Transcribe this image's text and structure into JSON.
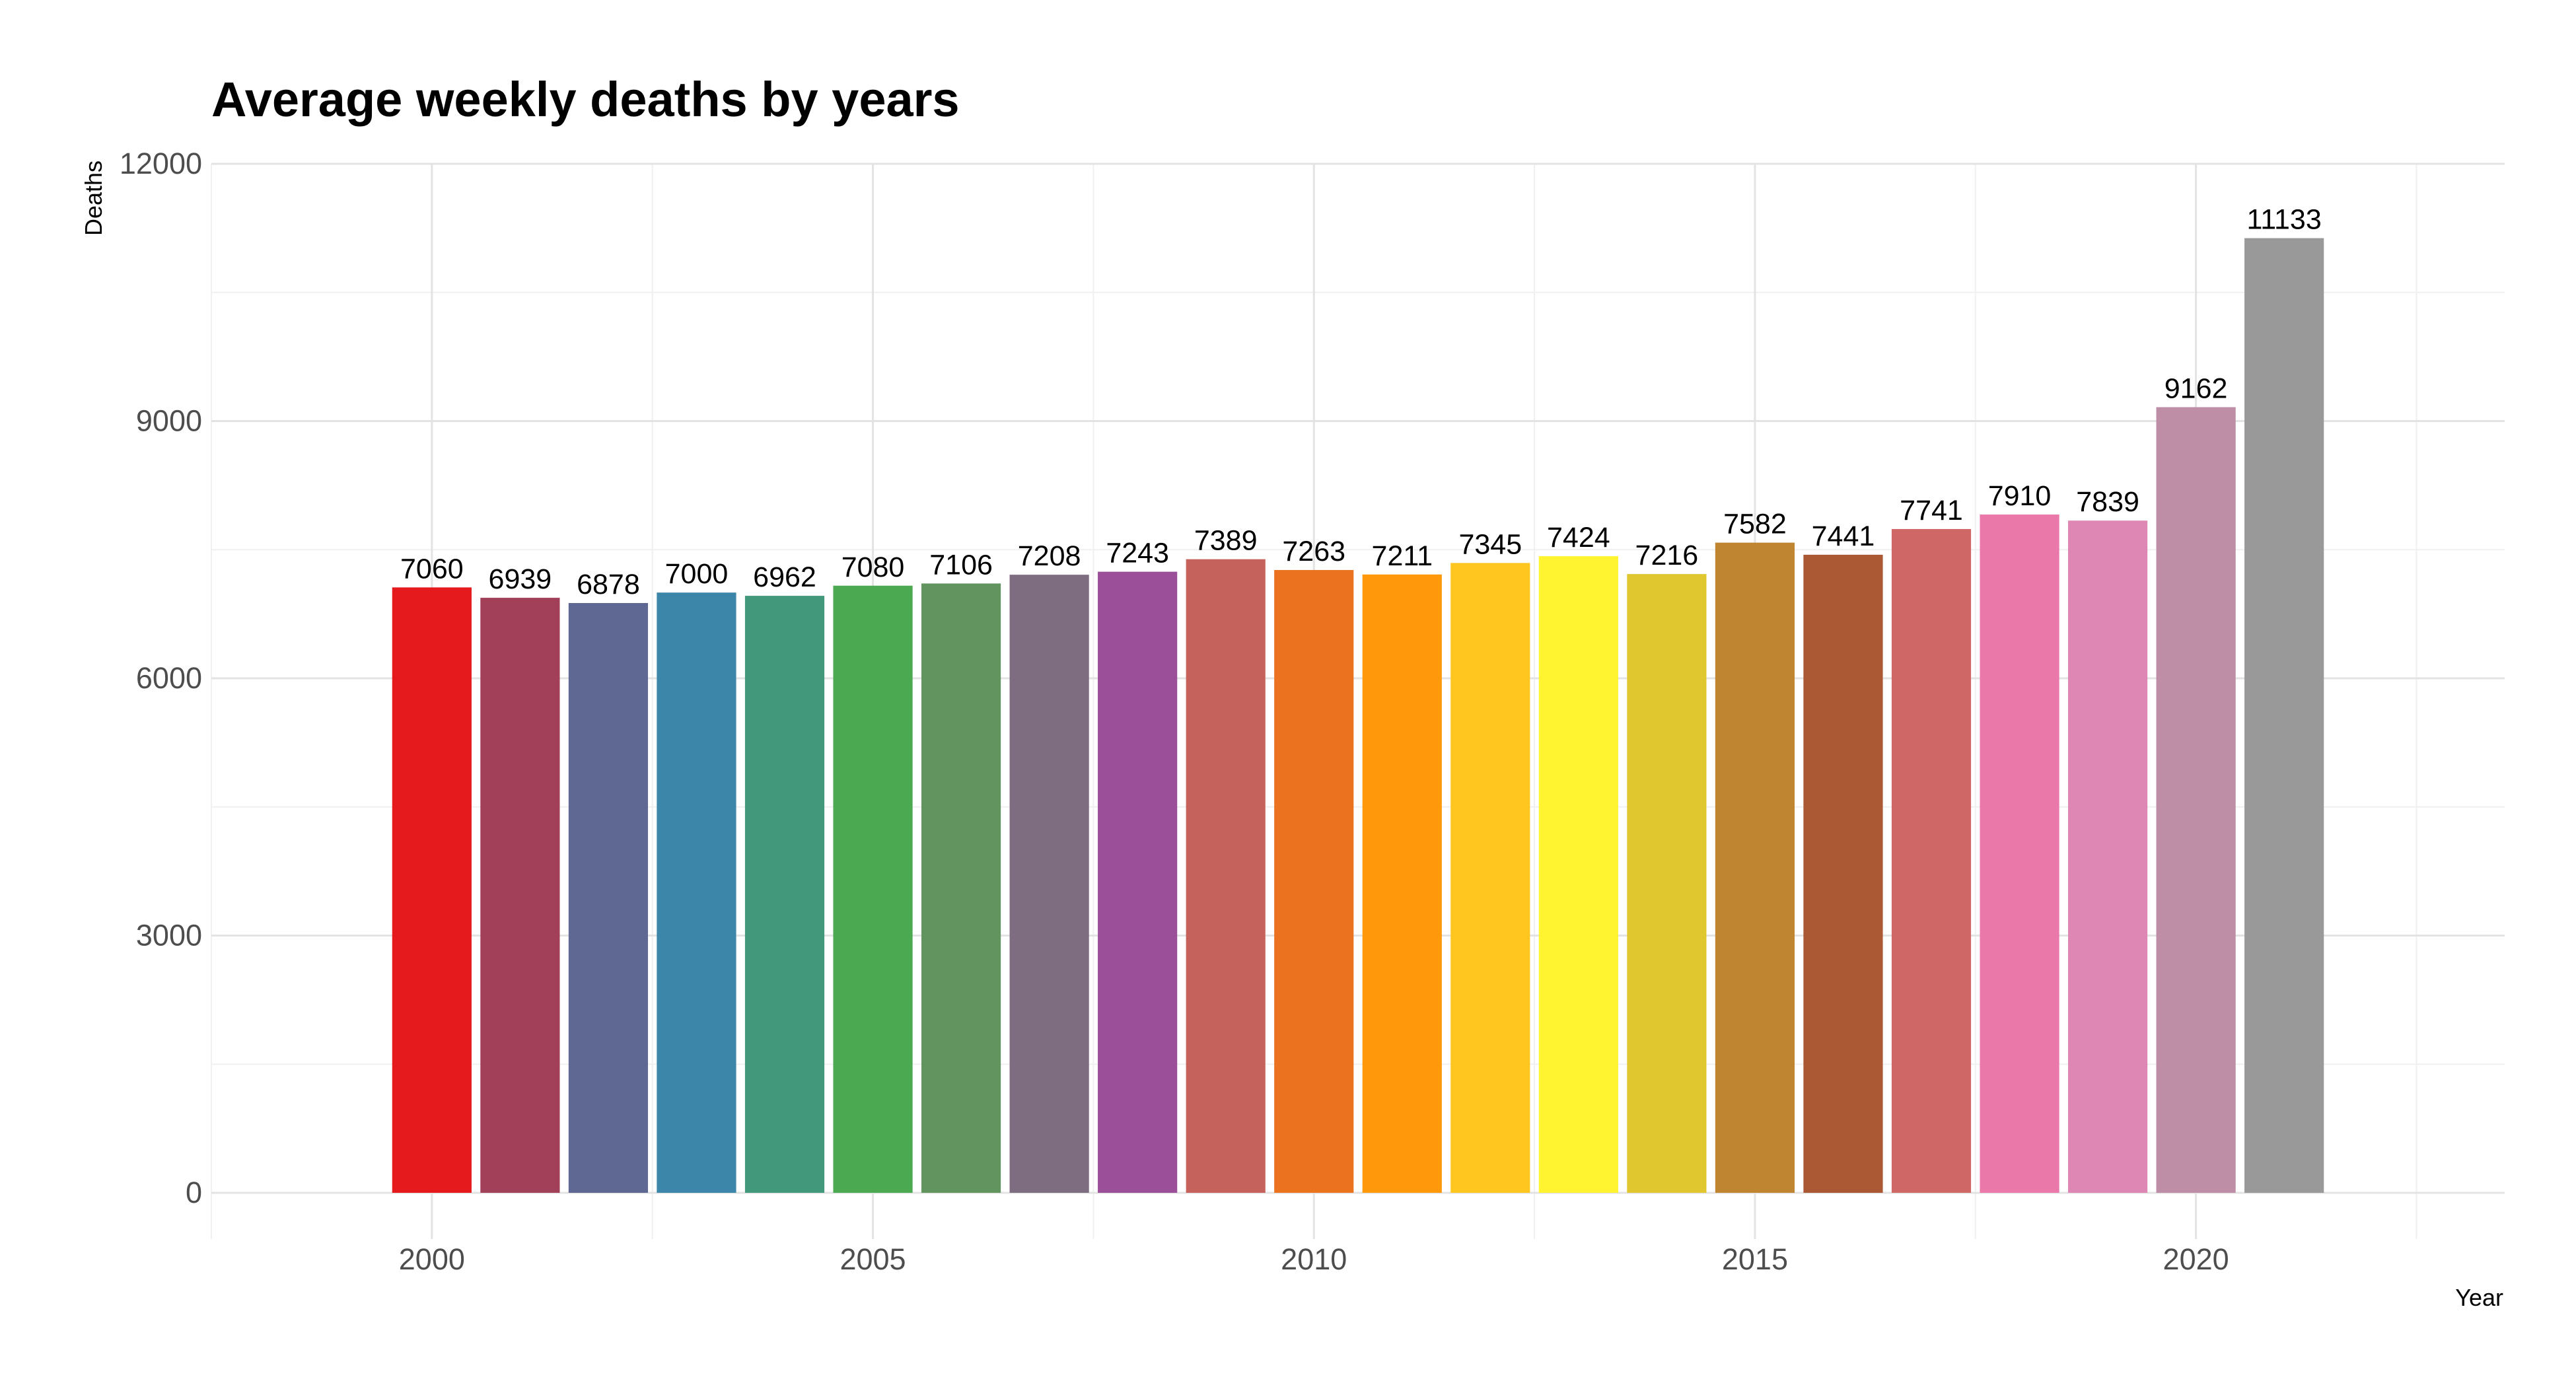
{
  "chart_data": {
    "type": "bar",
    "title": "Average weekly deaths by years",
    "xlabel": "Year",
    "ylabel": "Deaths",
    "x": [
      2000,
      2001,
      2002,
      2003,
      2004,
      2005,
      2006,
      2007,
      2008,
      2009,
      2010,
      2011,
      2012,
      2013,
      2014,
      2015,
      2016,
      2017,
      2018,
      2019,
      2020,
      2021
    ],
    "values": [
      7060,
      6939,
      6878,
      7000,
      6962,
      7080,
      7106,
      7208,
      7243,
      7389,
      7263,
      7211,
      7345,
      7424,
      7216,
      7582,
      7441,
      7741,
      7910,
      7839,
      9162,
      11133
    ],
    "colors": [
      "#E41A1C",
      "#A14058",
      "#5F6793",
      "#3C86A9",
      "#42987A",
      "#4BA952",
      "#62945F",
      "#7E6C80",
      "#9B4F99",
      "#C5625B",
      "#EB7320",
      "#FF980B",
      "#FFC620",
      "#FFF42F",
      "#E0C730",
      "#C08530",
      "#AB5934",
      "#D06767",
      "#EA79A9",
      "#DF87B4",
      "#BE8EA6",
      "#999999"
    ],
    "x_ticks": [
      "2000",
      "2005",
      "2010",
      "2015",
      "2020"
    ],
    "y_ticks": [
      "0",
      "3000",
      "6000",
      "9000",
      "12000"
    ],
    "xlim": [
      1997.5,
      2023.5
    ],
    "ylim": [
      0,
      12000
    ],
    "grid": true,
    "legend": "none"
  }
}
